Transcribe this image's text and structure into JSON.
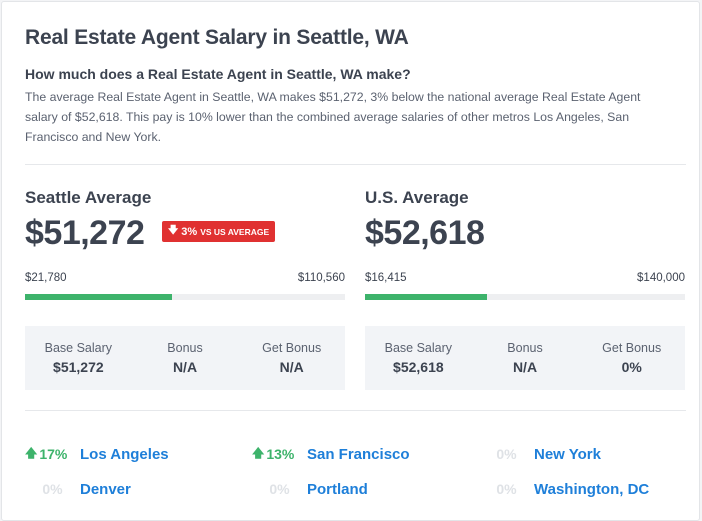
{
  "page": {
    "title": "Real Estate Agent Salary in Seattle, WA",
    "subtitle": "How much does a Real Estate Agent in Seattle, WA make?",
    "description": "The average Real Estate Agent in Seattle, WA makes $51,272, 3% below the national average Real Estate Agent salary of $52,618. This pay is 10% lower than the combined average salaries of other metros Los Angeles, San Francisco and New York."
  },
  "local": {
    "label": "Seattle Average",
    "value": "$51,272",
    "badge_pct": "3%",
    "badge_text": "VS US AVERAGE",
    "range_min": "$21,780",
    "range_max": "$110,560",
    "bar_fraction": 0.46,
    "breakdown": [
      {
        "label": "Base Salary",
        "value": "$51,272"
      },
      {
        "label": "Bonus",
        "value": "N/A"
      },
      {
        "label": "Get Bonus",
        "value": "N/A"
      }
    ]
  },
  "national": {
    "label": "U.S. Average",
    "value": "$52,618",
    "range_min": "$16,415",
    "range_max": "$140,000",
    "bar_fraction": 0.38,
    "breakdown": [
      {
        "label": "Base Salary",
        "value": "$52,618"
      },
      {
        "label": "Bonus",
        "value": "N/A"
      },
      {
        "label": "Get Bonus",
        "value": "0%"
      }
    ]
  },
  "metros": [
    {
      "pct": "17%",
      "city": "Los Angeles",
      "trend": "up"
    },
    {
      "pct": "13%",
      "city": "San Francisco",
      "trend": "up"
    },
    {
      "pct": "0%",
      "city": "New York",
      "trend": "none"
    },
    {
      "pct": "0%",
      "city": "Denver",
      "trend": "none"
    },
    {
      "pct": "0%",
      "city": "Portland",
      "trend": "none"
    },
    {
      "pct": "0%",
      "city": "Washington, DC",
      "trend": "none"
    }
  ],
  "colors": {
    "accent_green": "#3db36b",
    "badge_red": "#e03131",
    "link_blue": "#1e7fd9"
  },
  "icons": {
    "badge_arrow": "arrow-down-icon",
    "metro_arrow": "arrow-up-icon"
  }
}
